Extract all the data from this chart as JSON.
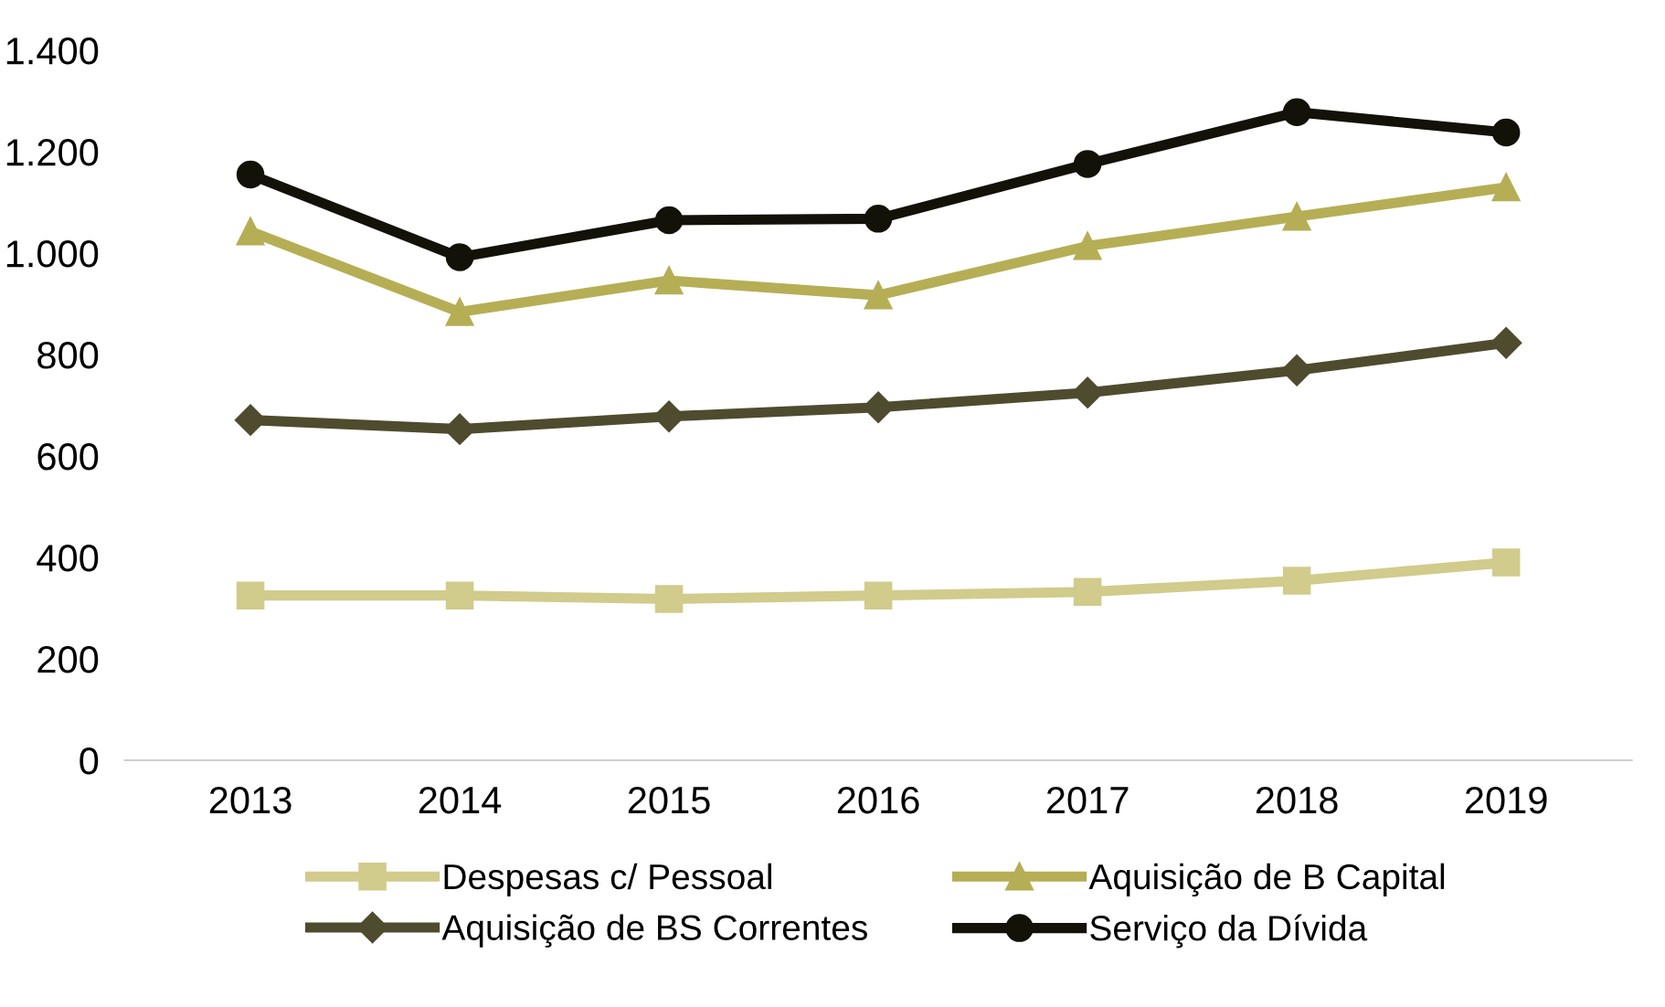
{
  "chart_data": {
    "type": "line",
    "categories": [
      "2013",
      "2014",
      "2015",
      "2016",
      "2017",
      "2018",
      "2019"
    ],
    "series": [
      {
        "name": "Despesas c/ Pessoal",
        "color": "#d1cb8c",
        "marker": "square",
        "values": [
          325,
          325,
          318,
          325,
          332,
          354,
          390
        ]
      },
      {
        "name": "Aquisição de BS Correntes",
        "color": "#4f4b2f",
        "marker": "diamond",
        "values": [
          671,
          653,
          678,
          696,
          725,
          769,
          823
        ]
      },
      {
        "name": "Aquisição de B Capital",
        "color": "#b6ae55",
        "marker": "triangle",
        "values": [
          1043,
          884,
          946,
          917,
          1014,
          1072,
          1130
        ]
      },
      {
        "name": "Serviço da Dívida",
        "color": "#121208",
        "marker": "circle",
        "values": [
          1155,
          992,
          1065,
          1068,
          1176,
          1278,
          1238
        ]
      }
    ],
    "ylim": [
      0,
      1400
    ],
    "yticks": [
      0,
      200,
      400,
      600,
      800,
      {
        "value": 1000,
        "label": "1.000"
      },
      {
        "value": 1200,
        "label": "1.200"
      },
      {
        "value": 1400,
        "label": "1.400"
      }
    ],
    "grid": false,
    "legend": "bottom",
    "line_style": "solid"
  }
}
